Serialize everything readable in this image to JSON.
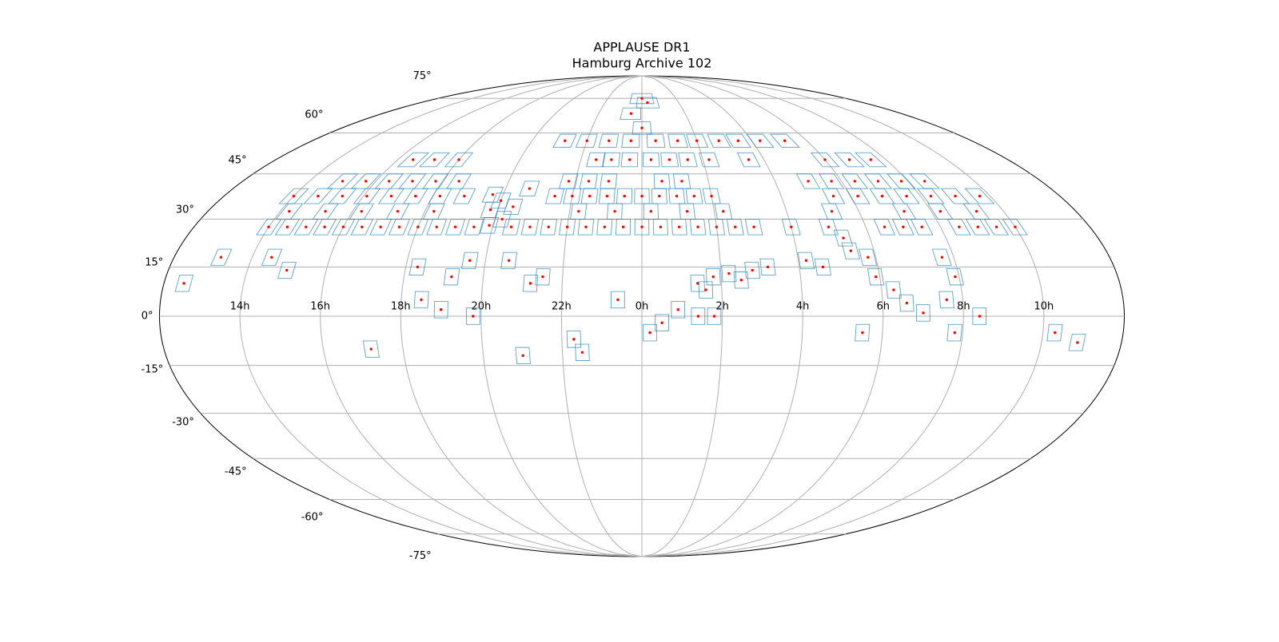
{
  "chart_data": {
    "type": "mollweide-scatter",
    "title": "APPLAUSE DR1",
    "subtitle": "Hamburg Archive 102",
    "xlim": [
      -12,
      12
    ],
    "ylim": [
      -90,
      90
    ],
    "grid": true,
    "xticks": [
      {
        "value": -10,
        "label": "14h"
      },
      {
        "value": -8,
        "label": "16h"
      },
      {
        "value": -6,
        "label": "18h"
      },
      {
        "value": -4,
        "label": "20h"
      },
      {
        "value": -2,
        "label": "22h"
      },
      {
        "value": 0,
        "label": "0h"
      },
      {
        "value": 2,
        "label": "2h"
      },
      {
        "value": 4,
        "label": "4h"
      },
      {
        "value": 6,
        "label": "6h"
      },
      {
        "value": 8,
        "label": "8h"
      },
      {
        "value": 10,
        "label": "10h"
      }
    ],
    "yticks": [
      {
        "value": -75,
        "label": "-75°"
      },
      {
        "value": -60,
        "label": "-60°"
      },
      {
        "value": -45,
        "label": "-45°"
      },
      {
        "value": -30,
        "label": "-30°"
      },
      {
        "value": -15,
        "label": "-15°"
      },
      {
        "value": 0,
        "label": "0°"
      },
      {
        "value": 15,
        "label": "15°"
      },
      {
        "value": 30,
        "label": "30°"
      },
      {
        "value": 45,
        "label": "45°"
      },
      {
        "value": 60,
        "label": "60°"
      },
      {
        "value": 75,
        "label": "75°"
      }
    ],
    "series": [
      {
        "color": "#ff0000",
        "plate_color": "#1f77b4",
        "x": [
          -10,
          -9.5,
          -9,
          -8.5,
          -8,
          -7.5,
          -7,
          -6.5,
          -6,
          -5.5,
          -5,
          -4.5,
          -3.5,
          -3,
          -2.5,
          -2,
          -1.5,
          -1,
          -0.5,
          0,
          0.5,
          1,
          1.5,
          2,
          2.5,
          3,
          4,
          5,
          6.5,
          7,
          7.5,
          8.5,
          9,
          9.5,
          10,
          -9.75,
          -8.75,
          -7.75,
          -6.75,
          -5.75,
          -1.75,
          -0.75,
          0.25,
          1.25,
          2.25,
          5.25,
          7.25,
          8.25,
          9.25,
          -10,
          -9.3,
          -8.6,
          -7.9,
          -7.2,
          -6.5,
          -5.8,
          -5.1,
          -2.5,
          -2,
          -1.5,
          -1,
          -0.5,
          0,
          0.5,
          1,
          1.5,
          2,
          5.5,
          6.2,
          6.9,
          7.6,
          8.3,
          9,
          9.7,
          -9,
          -8.3,
          -7.6,
          -6.9,
          -6.2,
          -5.5,
          -2.2,
          -1.6,
          -1,
          0.6,
          1.2,
          5,
          5.7,
          6.4,
          7.1,
          7.8,
          8.5,
          -7.5,
          -6.8,
          -6,
          -1.5,
          -1,
          -0.4,
          0.3,
          0.9,
          1.5,
          2.2,
          3.5,
          6,
          6.8,
          7.5,
          -2.8,
          -2,
          -1.2,
          -0.4,
          0.5,
          1.3,
          2,
          2.8,
          3.5,
          4.3,
          5.2,
          -4.2,
          -4,
          -3.8,
          -4.3,
          -3.6,
          -3.3,
          -4.1,
          1.4,
          1.8,
          2.2,
          2.5,
          2.8,
          3.2,
          1.6,
          4.2,
          4.6,
          5.4,
          5.8,
          5.9,
          6.3,
          6.6,
          7,
          5.5,
          5.3,
          7.7,
          7.9,
          7.6,
          7.8,
          8.4,
          -0.6,
          0.5,
          0.2,
          0.9,
          1.4,
          1.8,
          -5.5,
          -5,
          -4.2,
          -4.8,
          -4.4,
          -3.4,
          -2.5,
          -2.8,
          -5.7,
          -11.5,
          -10.8,
          -9.5,
          -9,
          -6.8,
          -3,
          -1.7,
          -1.5,
          10.3,
          10.9,
          0,
          0.3,
          -0.5,
          0
        ],
        "values": [
          27.5,
          27.5,
          27.5,
          27.5,
          27.5,
          27.5,
          27.5,
          27.5,
          27.5,
          27.5,
          27.5,
          27.5,
          27.5,
          27.5,
          27.5,
          27.5,
          27.5,
          27.5,
          27.5,
          27.5,
          27.5,
          27.5,
          27.5,
          27.5,
          27.5,
          27.5,
          27.5,
          27.5,
          27.5,
          27.5,
          27.5,
          27.5,
          27.5,
          27.5,
          27.5,
          32.5,
          32.5,
          32.5,
          32.5,
          32.5,
          32.5,
          32.5,
          32.5,
          32.5,
          32.5,
          32.5,
          32.5,
          32.5,
          32.5,
          37.5,
          37.5,
          37.5,
          37.5,
          37.5,
          37.5,
          37.5,
          37.5,
          37.5,
          37.5,
          37.5,
          37.5,
          37.5,
          37.5,
          37.5,
          37.5,
          37.5,
          37.5,
          37.5,
          37.5,
          37.5,
          37.5,
          37.5,
          37.5,
          37.5,
          42.5,
          42.5,
          42.5,
          42.5,
          42.5,
          42.5,
          42.5,
          42.5,
          42.5,
          42.5,
          42.5,
          42.5,
          42.5,
          42.5,
          42.5,
          42.5,
          42.5,
          50,
          50,
          50,
          50,
          50,
          50,
          50,
          50,
          50,
          50,
          50,
          50,
          50,
          50,
          57,
          57,
          57,
          57,
          57,
          57,
          57,
          57,
          57,
          57,
          57,
          33,
          36,
          30,
          38,
          34,
          40,
          28,
          10,
          12,
          13,
          11,
          14,
          15,
          8,
          17,
          15,
          20,
          18,
          12,
          8,
          4,
          1,
          -5,
          24,
          18,
          12,
          5,
          -5,
          0,
          5,
          -2,
          -5,
          2,
          0,
          0,
          5,
          2,
          0,
          12,
          17,
          17,
          12,
          10,
          15,
          10,
          18,
          18,
          14,
          -10,
          -12,
          -7,
          -11,
          -5,
          -8,
          75,
          73,
          68,
          62
        ]
      }
    ]
  }
}
